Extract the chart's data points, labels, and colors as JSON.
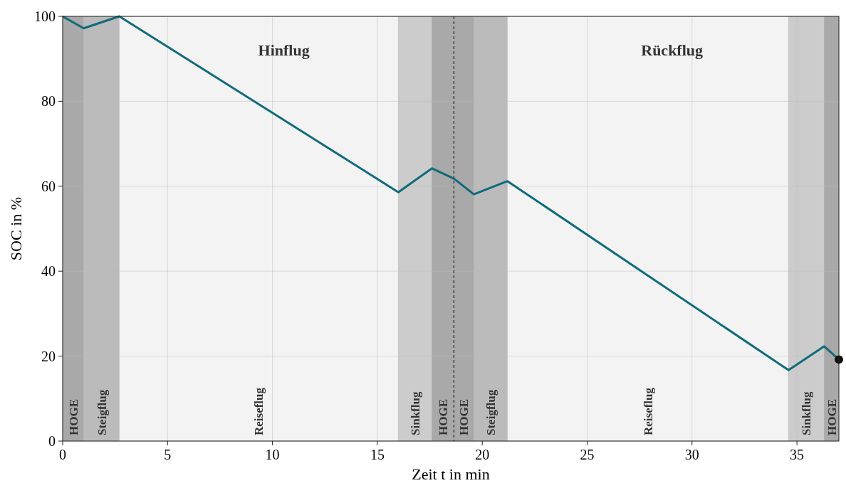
{
  "chart_data": {
    "type": "line",
    "xlabel": "Zeit t in min",
    "ylabel": "SOC in %",
    "xlim": [
      0,
      37
    ],
    "ylim": [
      0,
      100
    ],
    "xticks": [
      0,
      5,
      10,
      15,
      20,
      25,
      30,
      35
    ],
    "yticks": [
      0,
      20,
      40,
      60,
      80,
      100
    ],
    "grid": true,
    "line_style": "solid",
    "marker": "none",
    "series": [
      {
        "color": "#0f6b7a",
        "x": [
          0,
          1.0,
          2.7,
          16.0,
          17.6,
          18.65,
          19.6,
          21.2,
          34.6,
          36.3,
          37.0
        ],
        "values": [
          100,
          97.2,
          100,
          58.6,
          64.2,
          61.8,
          58.1,
          61.2,
          16.7,
          22.3,
          19.2
        ]
      },
      {
        "type": "scatter",
        "marker": "circle",
        "color": "#111111",
        "x": [
          37.0
        ],
        "values": [
          19.2
        ]
      }
    ],
    "bands": [
      {
        "axis": "x",
        "from": 0,
        "to": 1.0,
        "label": "HOGE",
        "color": "#a9a9a9"
      },
      {
        "axis": "x",
        "from": 1.0,
        "to": 2.7,
        "label": "Steigflug",
        "color": "#bbbbbb"
      },
      {
        "axis": "x",
        "from": 2.7,
        "to": 16.0,
        "label": "Reiseflug",
        "color": "#f3f3f3"
      },
      {
        "axis": "x",
        "from": 16.0,
        "to": 17.6,
        "label": "Sinkflug",
        "color": "#cccccc"
      },
      {
        "axis": "x",
        "from": 17.6,
        "to": 18.65,
        "label": "HOGE",
        "color": "#a9a9a9"
      },
      {
        "axis": "x",
        "from": 18.65,
        "to": 19.6,
        "label": "HOGE",
        "color": "#a9a9a9"
      },
      {
        "axis": "x",
        "from": 19.6,
        "to": 21.2,
        "label": "Steigflug",
        "color": "#bbbbbb"
      },
      {
        "axis": "x",
        "from": 21.2,
        "to": 34.6,
        "label": "Reiseflug",
        "color": "#f3f3f3"
      },
      {
        "axis": "x",
        "from": 34.6,
        "to": 36.3,
        "label": "Sinkflug",
        "color": "#cccccc"
      },
      {
        "axis": "x",
        "from": 36.3,
        "to": 37.0,
        "label": "HOGE",
        "color": "#a9a9a9"
      }
    ],
    "ref_lines": [
      {
        "axis": "x",
        "value": 18.65,
        "color": "#222222",
        "line_style": "dashed"
      }
    ],
    "annotations": [
      "Hinflug",
      "Rückflug"
    ]
  }
}
